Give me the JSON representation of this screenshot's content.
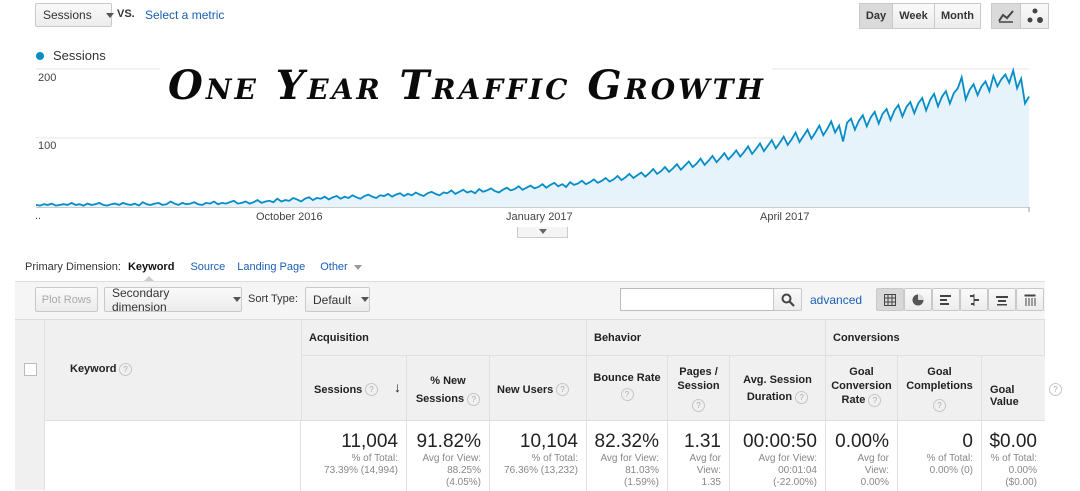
{
  "toolbar": {
    "metric_select": "Sessions",
    "vs_label": "VS.",
    "select_metric_link": "Select a metric",
    "granularity": [
      "Day",
      "Week",
      "Month"
    ],
    "active_granularity": "Day"
  },
  "chart_legend": "Sessions",
  "banner_title": "One Year Traffic Growth",
  "chart_data": {
    "type": "area",
    "series": [
      {
        "name": "Sessions",
        "color": "#058dc7"
      }
    ],
    "y_ticks": [
      "200",
      "100"
    ],
    "ylim": [
      0,
      200
    ],
    "x_ticks": [
      "October 2016",
      "January 2017",
      "April 2017"
    ],
    "x_start_label": "..",
    "values": [
      3,
      2,
      4,
      3,
      5,
      2,
      3,
      4,
      3,
      6,
      3,
      4,
      2,
      5,
      3,
      4,
      6,
      3,
      2,
      4,
      5,
      3,
      6,
      4,
      3,
      5,
      2,
      7,
      4,
      3,
      5,
      6,
      3,
      4,
      8,
      5,
      3,
      6,
      4,
      5,
      7,
      4,
      3,
      6,
      5,
      8,
      4,
      6,
      5,
      7,
      9,
      5,
      6,
      8,
      5,
      7,
      10,
      6,
      8,
      9,
      7,
      12,
      8,
      10,
      9,
      13,
      11,
      8,
      12,
      14,
      10,
      13,
      12,
      15,
      11,
      14,
      16,
      12,
      15,
      13,
      17,
      14,
      12,
      16,
      18,
      15,
      13,
      17,
      16,
      19,
      15,
      18,
      20,
      16,
      19,
      17,
      21,
      18,
      16,
      20,
      22,
      19,
      17,
      21,
      20,
      24,
      19,
      22,
      25,
      21,
      23,
      20,
      26,
      22,
      24,
      27,
      23,
      21,
      25,
      28,
      24,
      26,
      30,
      25,
      28,
      31,
      27,
      29,
      33,
      28,
      32,
      35,
      30,
      33,
      29,
      36,
      32,
      34,
      38,
      33,
      36,
      40,
      35,
      38,
      42,
      37,
      40,
      45,
      39,
      43,
      48,
      42,
      46,
      50,
      44,
      49,
      55,
      48,
      52,
      58,
      51,
      56,
      62,
      54,
      60,
      66,
      58,
      63,
      70,
      61,
      67,
      74,
      65,
      71,
      78,
      69,
      75,
      82,
      73,
      80,
      88,
      77,
      84,
      92,
      81,
      89,
      97,
      85,
      93,
      102,
      90,
      98,
      108,
      94,
      103,
      112,
      99,
      108,
      118,
      104,
      113,
      124,
      108,
      118,
      95,
      122,
      128,
      112,
      125,
      133,
      117,
      130,
      138,
      121,
      135,
      142,
      126,
      140,
      148,
      131,
      145,
      152,
      136,
      150,
      158,
      140,
      155,
      164,
      146,
      160,
      168,
      150,
      165,
      172,
      188,
      156,
      170,
      178,
      162,
      175,
      182,
      168,
      190,
      175,
      185,
      192,
      180,
      198,
      172,
      186,
      150,
      160
    ]
  },
  "dimension_bar": {
    "label": "Primary Dimension:",
    "active": "Keyword",
    "links": [
      "Source",
      "Landing Page"
    ],
    "other": "Other"
  },
  "table_controls": {
    "plot_rows": "Plot Rows",
    "secondary_dimension": "Secondary dimension",
    "sort_type_label": "Sort Type:",
    "sort_type_value": "Default",
    "search_placeholder": "",
    "advanced": "advanced"
  },
  "table": {
    "keyword_header": "Keyword",
    "groups": [
      "Acquisition",
      "Behavior",
      "Conversions"
    ],
    "columns": [
      {
        "label": "Sessions",
        "big": "11,004",
        "sub": [
          "% of Total:",
          "73.39% (14,994)"
        ]
      },
      {
        "label": "% New Sessions",
        "big": "91.82%",
        "sub": [
          "Avg for View:",
          "88.25%",
          "(4.05%)"
        ]
      },
      {
        "label": "New Users",
        "big": "10,104",
        "sub": [
          "% of Total:",
          "76.36% (13,232)"
        ]
      },
      {
        "label": "Bounce Rate",
        "big": "82.32%",
        "sub": [
          "Avg for View:",
          "81.03%",
          "(1.59%)"
        ]
      },
      {
        "label": "Pages / Session",
        "big": "1.31",
        "sub": [
          "Avg for",
          "View:",
          "1.35"
        ]
      },
      {
        "label": "Avg. Session Duration",
        "big": "00:00:50",
        "sub": [
          "Avg for View:",
          "00:01:04",
          "(-22.00%)"
        ]
      },
      {
        "label": "Goal Conversion Rate",
        "big": "0.00%",
        "sub": [
          "Avg for",
          "View:",
          "0.00%"
        ]
      },
      {
        "label": "Goal Completions",
        "big": "0",
        "sub": [
          "% of Total:",
          "0.00% (0)"
        ]
      },
      {
        "label": "Goal Value",
        "big": "$0.00",
        "sub": [
          "% of Total:",
          "0.00% ($0.00)"
        ]
      }
    ]
  }
}
